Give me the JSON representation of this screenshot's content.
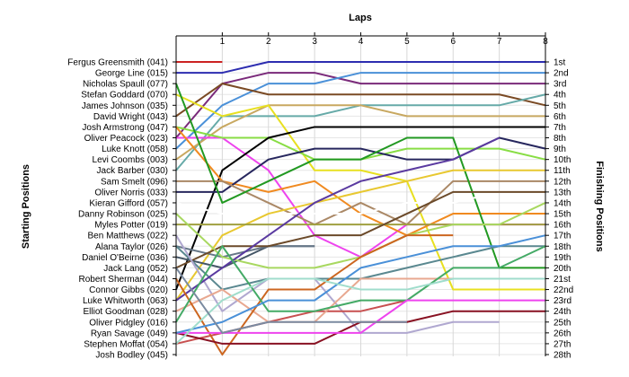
{
  "chart_data": {
    "type": "line",
    "title": "",
    "top_axis_title": "Laps",
    "left_axis_title": "Starting Positions",
    "right_axis_title": "Finishing Positions",
    "x_ticks": [
      "1",
      "2",
      "3",
      "4",
      "5",
      "6",
      "7",
      "8"
    ],
    "xlim": [
      0,
      8
    ],
    "y_range": [
      1,
      28
    ],
    "y_inverted": true,
    "grid": true,
    "starting_positions": [
      "Fergus Greensmith (041)",
      "George Line (015)",
      "Nicholas Spaull (077)",
      "Stefan Goddard (070)",
      "James Johnson (035)",
      "David Wright (043)",
      "Josh Armstrong (047)",
      "Oliver Peacock (023)",
      "Luke Knott (058)",
      "Levi Coombs (003)",
      "Jack Barber (030)",
      "Sam Smelt (096)",
      "Oliver Norris (033)",
      "Kieran Gifford (057)",
      "Danny Robinson (025)",
      "Myles Potter (019)",
      "Ben Matthews (022)",
      "Alana Taylor (026)",
      "Daniel O'Beirne (036)",
      "Jack Lang (052)",
      "Robert Sherman (044)",
      "Connor Gibbs (020)",
      "Luke Whitworth (063)",
      "Elliot Goodman (028)",
      "Oliver Pidgley (016)",
      "Ryan Savage (049)",
      "Stephen Moffat (054)",
      "Josh Bodley (045)"
    ],
    "finishing_positions": [
      "1st",
      "2nd",
      "3rd",
      "4th",
      "5th",
      "6th",
      "7th",
      "8th",
      "9th",
      "10th",
      "11th",
      "12th",
      "13th",
      "14th",
      "15th",
      "16th",
      "17th",
      "18th",
      "19th",
      "20th",
      "21st",
      "22nd",
      "23rd",
      "24th",
      "25th",
      "26th",
      "27th",
      "28th"
    ],
    "series": [
      {
        "color": "#cc2222",
        "values": [
          1,
          1
        ]
      },
      {
        "color": "#2d2db0",
        "values": [
          2,
          2,
          1,
          1,
          1,
          1,
          1,
          1,
          1
        ]
      },
      {
        "color": "#7a2a7a",
        "values": [
          8,
          3,
          2,
          2,
          3,
          3,
          3,
          3,
          3
        ]
      },
      {
        "color": "#4a90d8",
        "values": [
          9,
          5,
          3,
          3,
          2,
          2,
          2,
          2,
          2
        ]
      },
      {
        "color": "#7a4a24",
        "values": [
          6,
          3,
          4,
          4,
          4,
          4,
          4,
          4,
          5
        ]
      },
      {
        "color": "#66aaa8",
        "values": [
          11,
          6,
          6,
          6,
          5,
          5,
          5,
          5,
          4
        ]
      },
      {
        "color": "#c8a860",
        "values": [
          10,
          7,
          5,
          5,
          5,
          6,
          6,
          6,
          6
        ]
      },
      {
        "color": "#e8e020",
        "values": [
          4,
          6,
          5,
          11,
          11,
          12,
          22,
          22,
          22
        ]
      },
      {
        "color": "#ee44ee",
        "values": [
          8,
          8,
          11,
          17,
          19,
          16,
          16,
          16,
          16
        ]
      },
      {
        "color": "#88dd44",
        "values": [
          7,
          8,
          8,
          10,
          10,
          9,
          9,
          9,
          10
        ]
      },
      {
        "color": "#000000",
        "values": [
          22,
          11,
          8,
          7,
          7,
          7,
          7,
          7,
          7
        ]
      },
      {
        "color": "#f08a20",
        "values": [
          7,
          12,
          13,
          12,
          15,
          17,
          15,
          15,
          15
        ]
      },
      {
        "color": "#27275e",
        "values": [
          13,
          13,
          10,
          9,
          9,
          10,
          10,
          8,
          9
        ]
      },
      {
        "color": "#aa8866",
        "values": [
          12,
          12,
          14,
          16,
          14,
          16,
          12,
          12,
          12
        ]
      },
      {
        "color": "#229922",
        "values": [
          3,
          14,
          12,
          10,
          10,
          8,
          8,
          20,
          20
        ]
      },
      {
        "color": "#ffffff",
        "values": [
          14,
          15,
          15,
          15,
          15,
          14,
          14,
          13,
          13
        ]
      },
      {
        "color": "#e8c830",
        "values": [
          23,
          17,
          15,
          14,
          13,
          12,
          11,
          11,
          11
        ]
      },
      {
        "color": "#445566",
        "values": [
          19,
          20,
          18,
          18
        ]
      },
      {
        "color": "#a0a040",
        "values": [
          16,
          16,
          16,
          16,
          16,
          16,
          16,
          16,
          16
        ]
      },
      {
        "color": "#667788",
        "values": [
          18,
          19,
          18,
          18
        ]
      },
      {
        "color": "#6b4a2a",
        "values": [
          20,
          18,
          18,
          17,
          17,
          15,
          13,
          13,
          13
        ]
      },
      {
        "color": "#a8d860",
        "values": [
          15,
          19,
          20,
          20,
          19,
          17,
          16,
          16,
          14
        ]
      },
      {
        "color": "#5a8890",
        "values": [
          18,
          22,
          21,
          21,
          21,
          20,
          19,
          18,
          18
        ]
      },
      {
        "color": "#b0a8d0",
        "values": [
          17,
          24,
          21,
          21,
          26,
          26,
          25,
          25
        ]
      },
      {
        "color": "#5a3aa0",
        "values": [
          23,
          20,
          17,
          14,
          12,
          11,
          10,
          8
        ]
      },
      {
        "color": "#c85050",
        "values": [
          27,
          26,
          25,
          24,
          24,
          23
        ]
      },
      {
        "color": "#e8a890",
        "values": [
          24,
          22,
          25,
          25,
          21,
          21,
          21,
          21
        ]
      },
      {
        "color": "#cc6620",
        "values": [
          21,
          28,
          22,
          22,
          19,
          17,
          17
        ]
      },
      {
        "color": "#44aa66",
        "values": [
          25,
          18,
          24,
          24,
          23,
          23,
          20,
          20,
          18
        ]
      },
      {
        "color": "#881122",
        "values": [
          26,
          27,
          27,
          27,
          25,
          25,
          24,
          24,
          24
        ]
      },
      {
        "color": "#ee44ee",
        "values": [
          26,
          26,
          26,
          26,
          26,
          23,
          23,
          23,
          23
        ]
      },
      {
        "color": "#4a90d8",
        "values": [
          26,
          25,
          23,
          23,
          20,
          19,
          18,
          18,
          17
        ]
      },
      {
        "color": "#a0ddcc",
        "values": [
          27,
          23,
          21,
          21,
          22,
          22,
          21,
          21,
          21
        ]
      },
      {
        "color": "#7a8aa0",
        "values": [
          20,
          26,
          25,
          25,
          25,
          25
        ]
      }
    ]
  }
}
